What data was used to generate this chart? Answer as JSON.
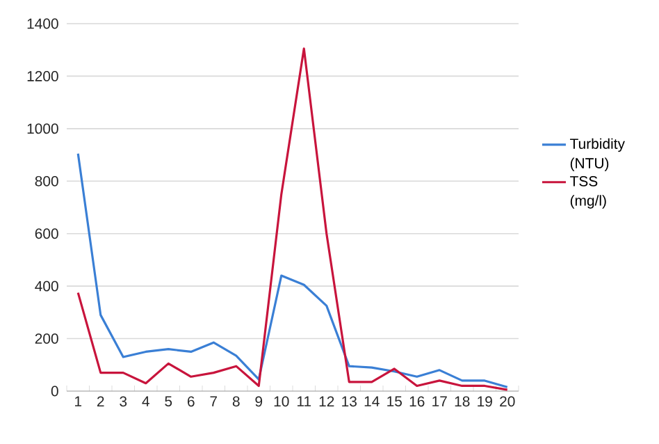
{
  "chart_data": {
    "type": "line",
    "categories": [
      "1",
      "2",
      "3",
      "4",
      "5",
      "6",
      "7",
      "8",
      "9",
      "10",
      "11",
      "12",
      "13",
      "14",
      "15",
      "16",
      "17",
      "18",
      "19",
      "20"
    ],
    "series": [
      {
        "name": "Turbidity (NTU)",
        "color": "#3a7fd5",
        "values": [
          905,
          290,
          130,
          150,
          160,
          150,
          185,
          135,
          45,
          440,
          405,
          325,
          95,
          90,
          75,
          55,
          80,
          40,
          40,
          15
        ]
      },
      {
        "name": "TSS (mg/l)",
        "color": "#c8143c",
        "values": [
          375,
          70,
          70,
          30,
          105,
          55,
          70,
          95,
          20,
          750,
          1305,
          600,
          35,
          35,
          85,
          20,
          40,
          20,
          20,
          5
        ]
      }
    ],
    "ylim": [
      0,
      1400
    ],
    "yticks": [
      0,
      200,
      400,
      600,
      800,
      1000,
      1200,
      1400
    ],
    "grid": "y",
    "legend": "right",
    "marker": "none",
    "line_style": "solid"
  }
}
